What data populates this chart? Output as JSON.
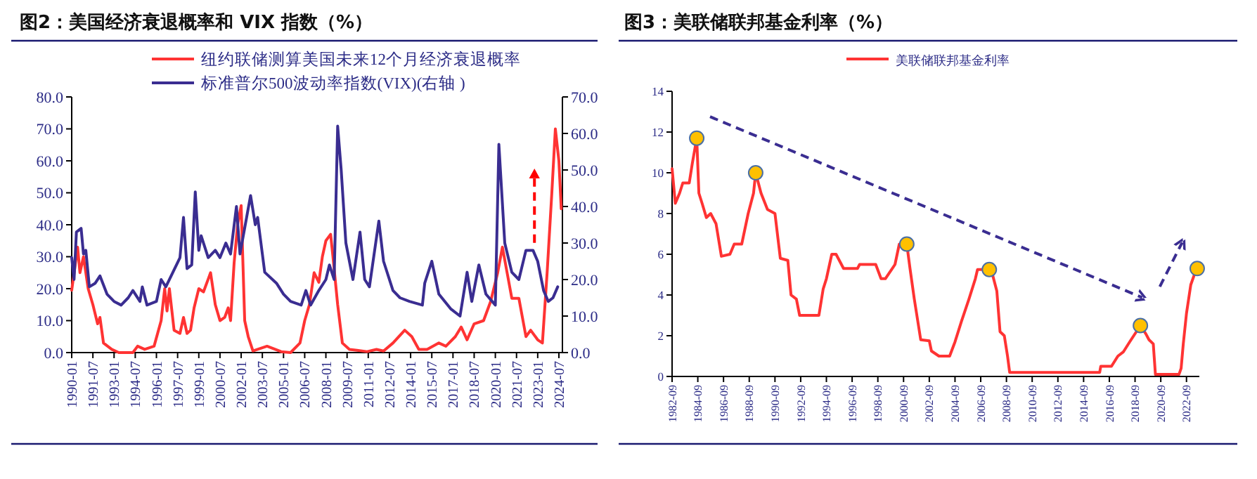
{
  "chart_data": [
    {
      "type": "line",
      "title": "图2：美国经济衰退概率和 VIX 指数（%）",
      "legend": "top",
      "line_style": "solid",
      "xlim": [
        "1990-01",
        "2024-10"
      ],
      "xticks": [
        "1990-01",
        "1991-07",
        "1993-01",
        "1994-07",
        "1996-01",
        "1997-07",
        "1999-01",
        "2000-07",
        "2002-01",
        "2003-07",
        "2005-01",
        "2006-07",
        "2008-01",
        "2009-07",
        "2011-01",
        "2012-07",
        "2014-01",
        "2015-07",
        "2017-01",
        "2018-07",
        "2020-01",
        "2021-07",
        "2023-01",
        "2024-07"
      ],
      "ylim": [
        0,
        80
      ],
      "yticks": [
        {
          "value": 0,
          "label": "0.0"
        },
        {
          "value": 10,
          "label": "10.0"
        },
        {
          "value": 20,
          "label": "20.0"
        },
        {
          "value": 30,
          "label": "30.0"
        },
        {
          "value": 40,
          "label": "40.0"
        },
        {
          "value": 50,
          "label": "50.0"
        },
        {
          "value": 60,
          "label": "60.0"
        },
        {
          "value": 70,
          "label": "70.0"
        },
        {
          "value": 80,
          "label": "80.0"
        }
      ],
      "y2lim": [
        0,
        70
      ],
      "y2ticks": [
        {
          "value": 0,
          "label": "0.0"
        },
        {
          "value": 10,
          "label": "10.0"
        },
        {
          "value": 20,
          "label": "20.0"
        },
        {
          "value": 30,
          "label": "30.0"
        },
        {
          "value": 40,
          "label": "40.0"
        },
        {
          "value": 50,
          "label": "50.0"
        },
        {
          "value": 60,
          "label": "60.0"
        },
        {
          "value": 70,
          "label": "70.0"
        }
      ],
      "series": [
        {
          "name": "纽约联储测算美国未来12个月经济衰退概率",
          "color": "#ff3333",
          "x": [
            "1990-01",
            "1990-06",
            "1990-08",
            "1990-11",
            "1991-03",
            "1991-07",
            "1991-11",
            "1992-01",
            "1992-04",
            "1992-11",
            "1993-05",
            "1994-05",
            "1994-09",
            "1995-03",
            "1995-11",
            "1996-05",
            "1996-08",
            "1996-10",
            "1996-12",
            "1997-04",
            "1997-09",
            "1997-12",
            "1998-03",
            "1998-06",
            "1998-09",
            "1999-01",
            "1999-05",
            "1999-09",
            "1999-11",
            "2000-03",
            "2000-07",
            "2000-11",
            "2001-02",
            "2001-04",
            "2001-07",
            "2001-10",
            "2002-01",
            "2002-04",
            "2002-07",
            "2002-11",
            "2003-11",
            "2004-11",
            "2005-07",
            "2006-03",
            "2006-07",
            "2006-11",
            "2007-03",
            "2007-07",
            "2007-10",
            "2008-01",
            "2008-05",
            "2008-07",
            "2008-11",
            "2009-03",
            "2009-09",
            "2010-12",
            "2011-08",
            "2012-02",
            "2012-10",
            "2013-08",
            "2014-02",
            "2014-08",
            "2015-03",
            "2016-01",
            "2016-07",
            "2017-03",
            "2017-08",
            "2018-01",
            "2018-07",
            "2019-03",
            "2019-09",
            "2020-03",
            "2020-07",
            "2020-11",
            "2021-03",
            "2021-09",
            "2022-03",
            "2022-07",
            "2023-01",
            "2023-05",
            "2023-09",
            "2024-01",
            "2024-04",
            "2024-07",
            "2024-09"
          ],
          "values": [
            19.5,
            33,
            25,
            30,
            20,
            15,
            9,
            11,
            3,
            1,
            0,
            0,
            2,
            1,
            2,
            10,
            20,
            13,
            20,
            7,
            6,
            11,
            6,
            7,
            14,
            20,
            19,
            23,
            25,
            15,
            10,
            11,
            14,
            10,
            28,
            40,
            46,
            10,
            5,
            0.5,
            2,
            0.3,
            0,
            3,
            10,
            15,
            25,
            22,
            30,
            35,
            37,
            30,
            15,
            3,
            1,
            0.3,
            1,
            0.5,
            3,
            7,
            5,
            1,
            1,
            3,
            2,
            5,
            8,
            4,
            9,
            10,
            16,
            25,
            33,
            25,
            17,
            17,
            5,
            7,
            4,
            3,
            25,
            50,
            70,
            60,
            45
          ]
        },
        {
          "name": "标准普尔500波动率指数(VIX)(右轴 )",
          "color": "#3a2d91",
          "axis": "y2",
          "x": [
            "1990-01",
            "1990-03",
            "1990-05",
            "1990-09",
            "1990-11",
            "1991-01",
            "1991-04",
            "1991-09",
            "1992-01",
            "1992-07",
            "1993-01",
            "1993-07",
            "1994-01",
            "1994-05",
            "1994-11",
            "1995-01",
            "1995-05",
            "1996-01",
            "1996-05",
            "1996-09",
            "1997-03",
            "1997-09",
            "1997-12",
            "1998-03",
            "1998-07",
            "1998-10",
            "1999-01",
            "1999-03",
            "1999-09",
            "2000-03",
            "2000-07",
            "2000-12",
            "2001-04",
            "2001-09",
            "2001-12",
            "2002-09",
            "2003-01",
            "2003-03",
            "2003-09",
            "2004-07",
            "2005-01",
            "2005-07",
            "2006-04",
            "2006-08",
            "2006-12",
            "2007-07",
            "2008-01",
            "2008-04",
            "2008-08",
            "2008-11",
            "2009-02",
            "2009-06",
            "2009-12",
            "2010-06",
            "2010-10",
            "2011-02",
            "2011-10",
            "2012-02",
            "2012-10",
            "2013-04",
            "2013-12",
            "2014-11",
            "2015-01",
            "2015-07",
            "2016-01",
            "2016-11",
            "2017-07",
            "2018-01",
            "2018-05",
            "2018-11",
            "2019-05",
            "2020-01",
            "2020-04",
            "2020-09",
            "2021-03",
            "2021-09",
            "2022-03",
            "2022-09",
            "2023-01",
            "2023-06",
            "2023-10",
            "2024-02",
            "2024-06"
          ],
          "values": [
            26,
            20,
            33,
            34,
            27,
            28,
            18,
            19,
            21,
            16,
            14,
            13,
            15,
            17,
            14,
            18,
            13,
            14,
            20,
            18,
            22,
            26,
            37,
            23,
            24,
            44,
            28,
            32,
            26,
            28,
            26,
            30,
            27,
            40,
            27,
            43,
            35,
            37,
            22,
            19,
            16,
            14,
            13,
            17,
            13,
            17,
            20,
            24,
            20,
            62,
            50,
            30,
            20,
            33,
            20,
            18,
            36,
            25,
            17,
            15,
            14,
            13,
            19,
            25,
            16,
            12,
            10,
            22,
            14,
            24,
            16,
            13,
            57,
            30,
            22,
            20,
            28,
            28,
            25,
            17,
            14,
            15,
            18
          ]
        }
      ]
    },
    {
      "type": "line",
      "title": "图3：美联储联邦基金利率（%）",
      "legend": "top",
      "line_style": "solid",
      "xlim": [
        "1982-09",
        "2023-09"
      ],
      "xticks": [
        "1982-09",
        "1984-09",
        "1986-09",
        "1988-09",
        "1990-09",
        "1992-09",
        "1994-09",
        "1996-09",
        "1998-09",
        "2000-09",
        "2002-09",
        "2004-09",
        "2006-09",
        "2008-09",
        "2010-09",
        "2012-09",
        "2014-09",
        "2016-09",
        "2018-09",
        "2020-09",
        "2022-09"
      ],
      "ylim": [
        0,
        14
      ],
      "yticks": [
        0,
        2,
        4,
        6,
        8,
        10,
        12,
        14
      ],
      "series": [
        {
          "name": "美联储联邦基金利率",
          "color": "#ff3333",
          "x": [
            "1982-09",
            "1982-12",
            "1983-04",
            "1983-07",
            "1984-01",
            "1984-04",
            "1984-08",
            "1984-10",
            "1985-01",
            "1985-05",
            "1985-09",
            "1986-02",
            "1986-07",
            "1987-03",
            "1987-07",
            "1988-02",
            "1988-08",
            "1989-01",
            "1989-03",
            "1989-08",
            "1990-02",
            "1990-09",
            "1991-02",
            "1991-09",
            "1991-12",
            "1992-05",
            "1992-08",
            "1994-02",
            "1994-06",
            "1994-09",
            "1995-02",
            "1995-06",
            "1996-01",
            "1997-02",
            "1997-04",
            "1998-07",
            "1998-12",
            "1999-04",
            "2000-01",
            "2000-05",
            "2000-12",
            "2001-03",
            "2001-07",
            "2002-01",
            "2002-09",
            "2002-11",
            "2003-06",
            "2004-04",
            "2004-09",
            "2005-03",
            "2005-10",
            "2006-04",
            "2006-06",
            "2007-05",
            "2007-08",
            "2007-12",
            "2008-03",
            "2008-07",
            "2008-10",
            "2008-12",
            "2015-12",
            "2016-01",
            "2016-11",
            "2017-05",
            "2017-10",
            "2018-04",
            "2019-02",
            "2019-07",
            "2019-10",
            "2020-02",
            "2020-04",
            "2022-02",
            "2022-04",
            "2022-06",
            "2022-09",
            "2022-11",
            "2023-01",
            "2023-05",
            "2023-07"
          ],
          "values": [
            10.2,
            8.5,
            9,
            9.5,
            9.5,
            10.5,
            11.7,
            9,
            8.5,
            7.8,
            8,
            7.5,
            5.9,
            6,
            6.5,
            6.5,
            8,
            9,
            10,
            9,
            8.2,
            8,
            5.8,
            5.7,
            4,
            3.8,
            3,
            3,
            4.3,
            4.8,
            6,
            6,
            5.3,
            5.3,
            5.5,
            5.5,
            4.8,
            4.8,
            5.5,
            6.5,
            6.5,
            5.3,
            3.8,
            1.8,
            1.75,
            1.25,
            1,
            1,
            1.7,
            2.7,
            3.8,
            4.8,
            5.25,
            5.25,
            5,
            4.2,
            2.2,
            2,
            1,
            0.2,
            0.2,
            0.5,
            0.5,
            1,
            1.2,
            1.7,
            2.5,
            2.1,
            1.8,
            1.6,
            0.1,
            0.1,
            0.4,
            1.6,
            3.1,
            3.8,
            4.5,
            5.1,
            5.3
          ]
        },
        {
          "type": "scatter",
          "marker": "circle",
          "color": "#ffc000",
          "x": [
            "1984-08",
            "1989-03",
            "2000-12",
            "2007-05",
            "2019-02",
            "2023-07"
          ],
          "values": [
            11.7,
            10,
            6.5,
            5.25,
            2.5,
            5.3
          ]
        }
      ]
    }
  ]
}
